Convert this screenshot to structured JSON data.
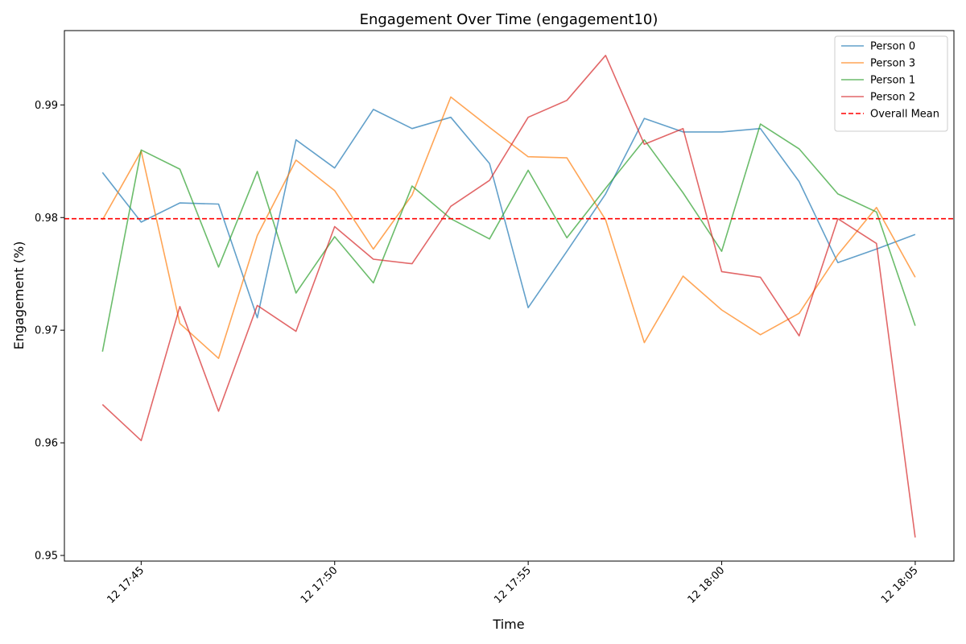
{
  "chart_data": {
    "type": "line",
    "title": "Engagement Over Time (engagement10)",
    "xlabel": "Time",
    "ylabel": "Engagement (%)",
    "x": [
      "17:44",
      "17:45",
      "17:46",
      "17:47",
      "17:48",
      "17:49",
      "17:50",
      "17:51",
      "17:52",
      "17:53",
      "17:54",
      "17:55",
      "17:56",
      "17:57",
      "17:58",
      "17:59",
      "18:00",
      "18:01",
      "18:02",
      "18:03",
      "18:04",
      "18:05"
    ],
    "x_ticks": [
      {
        "value": "17:45",
        "label": "12 17:45"
      },
      {
        "value": "17:50",
        "label": "12 17:50"
      },
      {
        "value": "17:55",
        "label": "12 17:55"
      },
      {
        "value": "18:00",
        "label": "12 18:00"
      },
      {
        "value": "18:05",
        "label": "12 18:05"
      }
    ],
    "xlim": [
      "17:43:01",
      "18:06:00"
    ],
    "ylim": [
      0.9495,
      0.9966
    ],
    "y_ticks": [
      0.95,
      0.96,
      0.97,
      0.98,
      0.99
    ],
    "series": [
      {
        "name": "Person 0",
        "color": "#1f77b4",
        "values": [
          0.984,
          0.9796,
          0.9813,
          0.9812,
          0.9711,
          0.9869,
          0.9844,
          0.9896,
          0.9879,
          0.9889,
          0.9848,
          0.972,
          0.977,
          0.9821,
          0.9888,
          0.9876,
          0.9876,
          0.9879,
          0.9832,
          0.976,
          0.9772,
          0.9785
        ]
      },
      {
        "name": "Person 3",
        "color": "#ff7f0e",
        "values": [
          0.9798,
          0.9859,
          0.9706,
          0.9675,
          0.9784,
          0.9851,
          0.9824,
          0.9772,
          0.982,
          0.9907,
          0.988,
          0.9854,
          0.9853,
          0.9798,
          0.9689,
          0.9748,
          0.9718,
          0.9696,
          0.9715,
          0.9767,
          0.9809,
          0.9747
        ]
      },
      {
        "name": "Person 1",
        "color": "#2ca02c",
        "values": [
          0.9681,
          0.986,
          0.9843,
          0.9756,
          0.9841,
          0.9733,
          0.9783,
          0.9742,
          0.9828,
          0.9799,
          0.9781,
          0.9842,
          0.9782,
          0.9826,
          0.9869,
          0.9822,
          0.977,
          0.9883,
          0.9861,
          0.9821,
          0.9805,
          0.9704
        ]
      },
      {
        "name": "Person 2",
        "color": "#d62728",
        "values": [
          0.9634,
          0.9602,
          0.9721,
          0.9628,
          0.9722,
          0.9699,
          0.9792,
          0.9763,
          0.9759,
          0.981,
          0.9833,
          0.9889,
          0.9904,
          0.9944,
          0.9865,
          0.9879,
          0.9752,
          0.9747,
          0.9695,
          0.9799,
          0.9777,
          0.9516
        ]
      }
    ],
    "mean_line": {
      "name": "Overall Mean",
      "value": 0.9799,
      "color": "#ff0000",
      "style": "dashed"
    },
    "legend": "top-right",
    "grid": false
  }
}
